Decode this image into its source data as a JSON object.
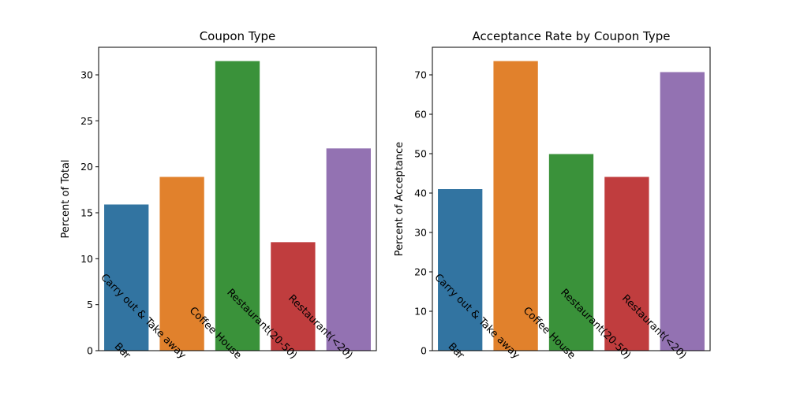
{
  "chart_data": [
    {
      "type": "bar",
      "title": "Coupon Type",
      "xlabel": "",
      "ylabel": "Percent of Total",
      "categories": [
        "Bar",
        "Carry out & Take away",
        "Coffee House",
        "Restaurant(20-50)",
        "Restaurant(<20)"
      ],
      "values": [
        15.9,
        18.9,
        31.5,
        11.8,
        22.0
      ],
      "ylim": [
        0,
        33
      ],
      "yticks": [
        0,
        5,
        10,
        15,
        20,
        25,
        30
      ],
      "colors": [
        "#3274a1",
        "#e1812c",
        "#3a923a",
        "#c03d3e",
        "#9372b2"
      ],
      "grid": false
    },
    {
      "type": "bar",
      "title": "Acceptance Rate by Coupon Type",
      "xlabel": "",
      "ylabel": "Percent of Acceptance",
      "categories": [
        "Bar",
        "Carry out & Take away",
        "Coffee House",
        "Restaurant(20-50)",
        "Restaurant(<20)"
      ],
      "values": [
        41.0,
        73.5,
        49.9,
        44.1,
        70.7
      ],
      "ylim": [
        0,
        77
      ],
      "yticks": [
        0,
        10,
        20,
        30,
        40,
        50,
        60,
        70
      ],
      "colors": [
        "#3274a1",
        "#e1812c",
        "#3a923a",
        "#c03d3e",
        "#9372b2"
      ],
      "grid": false
    }
  ]
}
